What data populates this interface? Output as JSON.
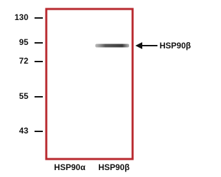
{
  "markers": [
    130,
    95,
    72,
    55,
    43
  ],
  "band_label": "HSP90β",
  "lanes": [
    "HSP90α",
    "HSP90β"
  ]
}
